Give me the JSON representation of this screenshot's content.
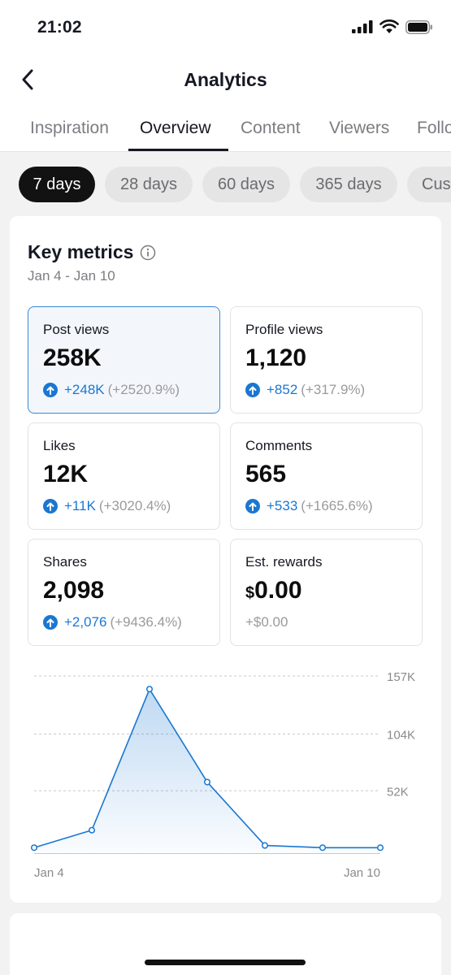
{
  "status_bar": {
    "time": "21:02"
  },
  "header": {
    "title": "Analytics"
  },
  "tabs": [
    "Inspiration",
    "Overview",
    "Content",
    "Viewers",
    "Followers"
  ],
  "active_tab": "Overview",
  "ranges": [
    "7 days",
    "28 days",
    "60 days",
    "365 days",
    "Custom"
  ],
  "active_range": "7 days",
  "key_metrics": {
    "title": "Key metrics",
    "date_range": "Jan 4 - Jan 10",
    "metrics": [
      {
        "label": "Post views",
        "value": "258K",
        "delta": "+248K",
        "pct": "(+2520.9%)"
      },
      {
        "label": "Profile views",
        "value": "1,120",
        "delta": "+852",
        "pct": "(+317.9%)"
      },
      {
        "label": "Likes",
        "value": "12K",
        "delta": "+11K",
        "pct": "(+3020.4%)"
      },
      {
        "label": "Comments",
        "value": "565",
        "delta": "+533",
        "pct": "(+1665.6%)"
      },
      {
        "label": "Shares",
        "value": "2,098",
        "delta": "+2,076",
        "pct": "(+9436.4%)"
      },
      {
        "label": "Est. rewards",
        "currency": "$",
        "value": "0.00",
        "change": "+$0.00"
      }
    ]
  },
  "colors": {
    "accent": "#1a77d2",
    "selected_border": "#3a87d8"
  },
  "chart_data": {
    "type": "area",
    "x": [
      "Jan 4",
      "Jan 5",
      "Jan 6",
      "Jan 7",
      "Jan 8",
      "Jan 9",
      "Jan 10"
    ],
    "values": [
      0,
      16000,
      145000,
      60000,
      2000,
      0,
      0
    ],
    "y_ticks": [
      52000,
      104000,
      157000
    ],
    "y_tick_labels": [
      "52K",
      "104K",
      "157K"
    ],
    "x_tick_labels": [
      "Jan 4",
      "Jan 10"
    ],
    "ylim": [
      -5000,
      157000
    ],
    "grid": true
  }
}
